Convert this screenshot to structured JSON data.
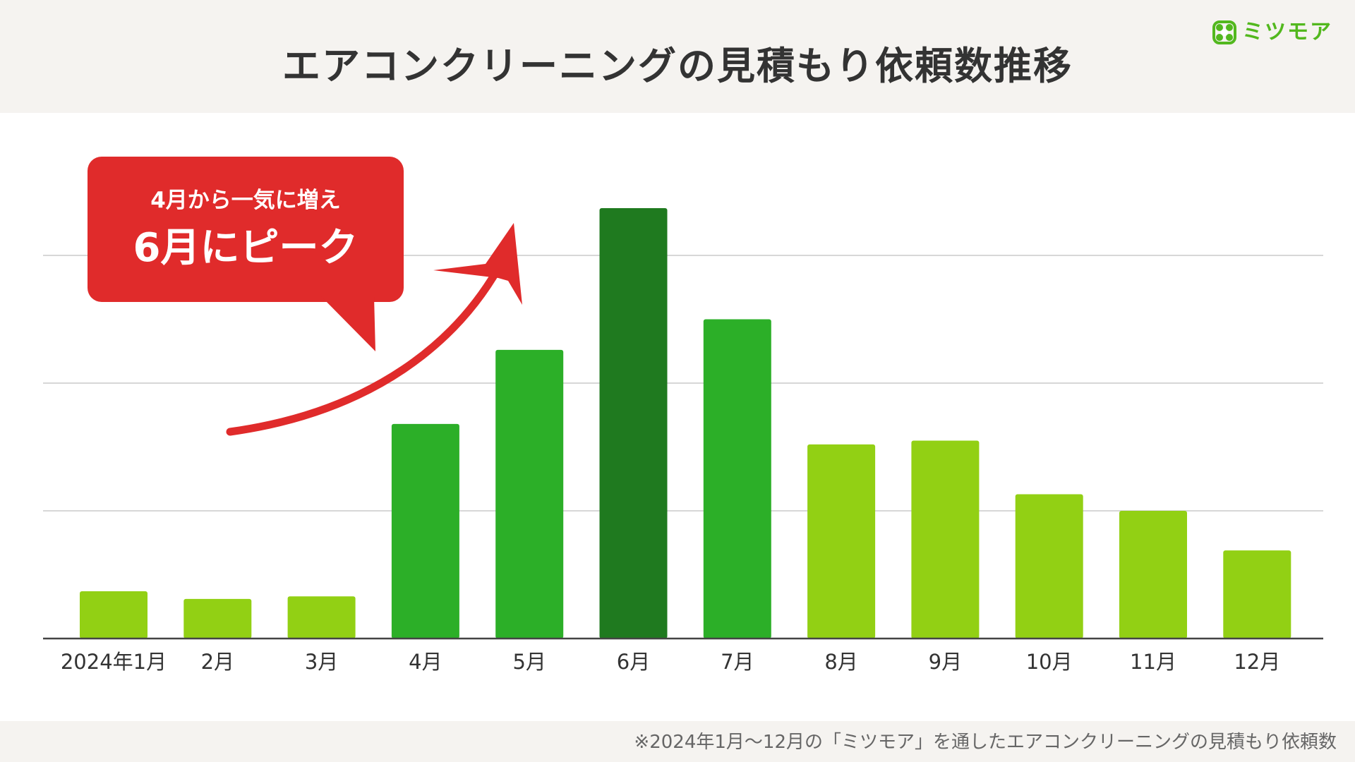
{
  "title": "エアコンクリーニングの見積もり依頼数推移",
  "logo": {
    "text": "ミツモア",
    "icon": "mitsumore-logo-icon"
  },
  "callout": {
    "line1": "4月から一気に増え",
    "line2": "6月にピーク"
  },
  "footnote": "※2024年1月〜12月の「ミツモア」を通したエアコンクリーニングの見積もり依頼数",
  "colors": {
    "light_green": "#92d014",
    "mid_green": "#2caf28",
    "dark_green": "#1f7a1f",
    "callout_red": "#e02b2b",
    "gridline": "#d7d7d7",
    "axis": "#444444"
  },
  "chart_data": {
    "type": "bar",
    "title": "エアコンクリーニングの見積もり依頼数推移",
    "categories": [
      "2024年1月",
      "2月",
      "3月",
      "4月",
      "5月",
      "6月",
      "7月",
      "8月",
      "9月",
      "10月",
      "11月",
      "12月"
    ],
    "values": [
      0.37,
      0.31,
      0.33,
      1.68,
      2.26,
      3.37,
      2.5,
      1.52,
      1.55,
      1.13,
      1.0,
      0.69
    ],
    "bar_colors": [
      "light_green",
      "light_green",
      "light_green",
      "mid_green",
      "mid_green",
      "dark_green",
      "mid_green",
      "light_green",
      "light_green",
      "light_green",
      "light_green",
      "light_green"
    ],
    "ylim": [
      0,
      3.6
    ],
    "gridlines": [
      1,
      2,
      3
    ],
    "grid": true,
    "y_tick_labels_visible": false,
    "legend": "none"
  }
}
